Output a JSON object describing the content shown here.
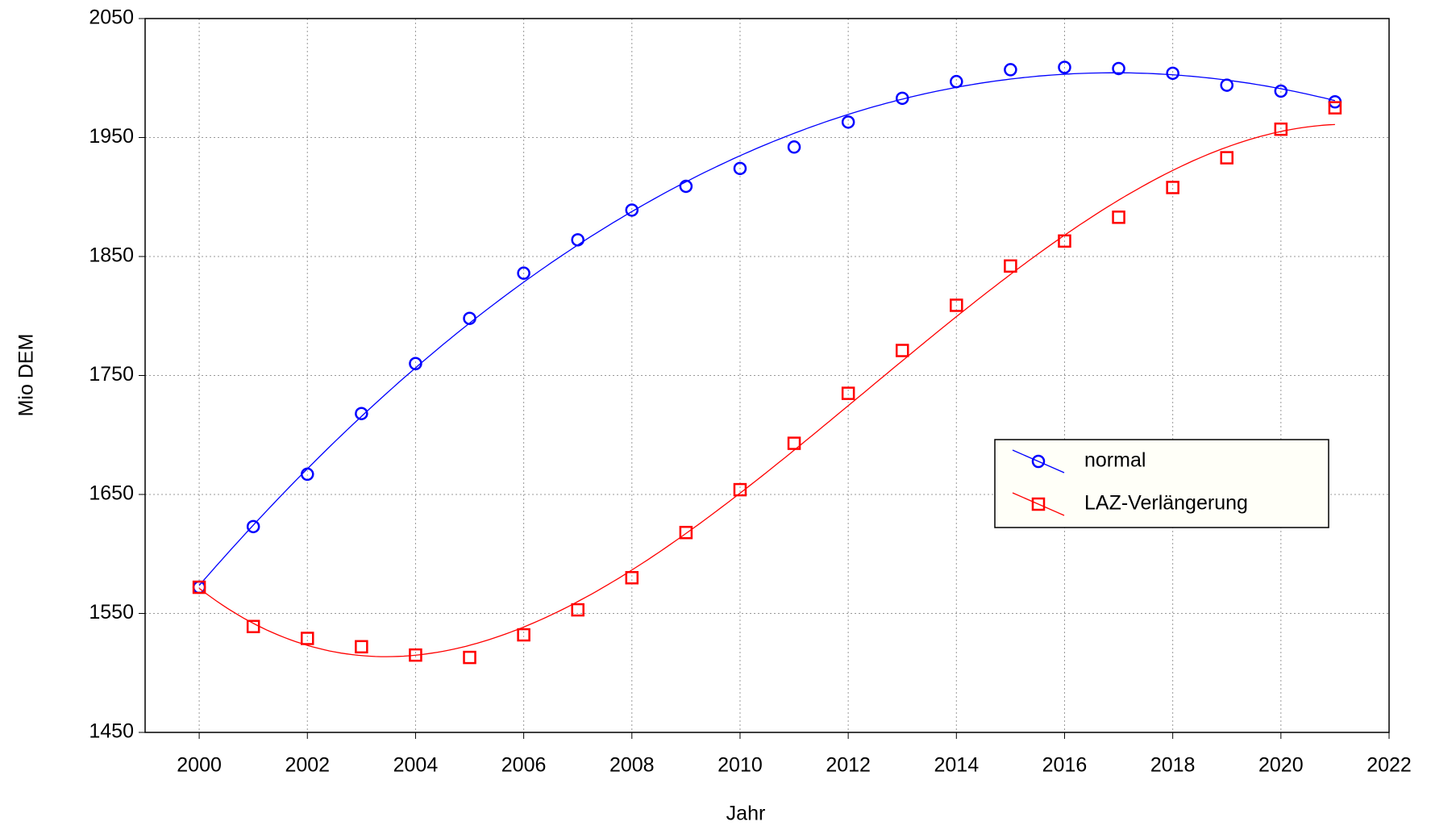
{
  "chart_data": {
    "type": "scatter",
    "x_label": "Jahr",
    "y_label": "Mio DEM",
    "x": [
      2000,
      2001,
      2002,
      2003,
      2004,
      2005,
      2006,
      2007,
      2008,
      2009,
      2010,
      2011,
      2012,
      2013,
      2014,
      2015,
      2016,
      2017,
      2018,
      2019,
      2020,
      2021
    ],
    "series": [
      {
        "name": "normal",
        "color": "#0000ff",
        "marker": "circle",
        "values": [
          1572,
          1623,
          1667,
          1718,
          1760,
          1798,
          1836,
          1864,
          1889,
          1909,
          1924,
          1942,
          1963,
          1983,
          1997,
          2007,
          2009,
          2008,
          2004,
          1994,
          1989,
          1980
        ]
      },
      {
        "name": "LAZ-Verlängerung",
        "color": "#ff0000",
        "marker": "square",
        "values": [
          1572,
          1539,
          1529,
          1522,
          1515,
          1513,
          1532,
          1553,
          1580,
          1618,
          1654,
          1693,
          1735,
          1771,
          1809,
          1842,
          1863,
          1883,
          1908,
          1933,
          1957,
          1975
        ]
      }
    ],
    "fit_degree": 3,
    "xlim": [
      1999,
      2022
    ],
    "xticks": [
      2000,
      2002,
      2004,
      2006,
      2008,
      2010,
      2012,
      2014,
      2016,
      2018,
      2020,
      2022
    ],
    "ylim": [
      1450,
      2050
    ],
    "yticks": [
      1450,
      1550,
      1650,
      1750,
      1850,
      1950,
      2050
    ],
    "grid": true
  }
}
